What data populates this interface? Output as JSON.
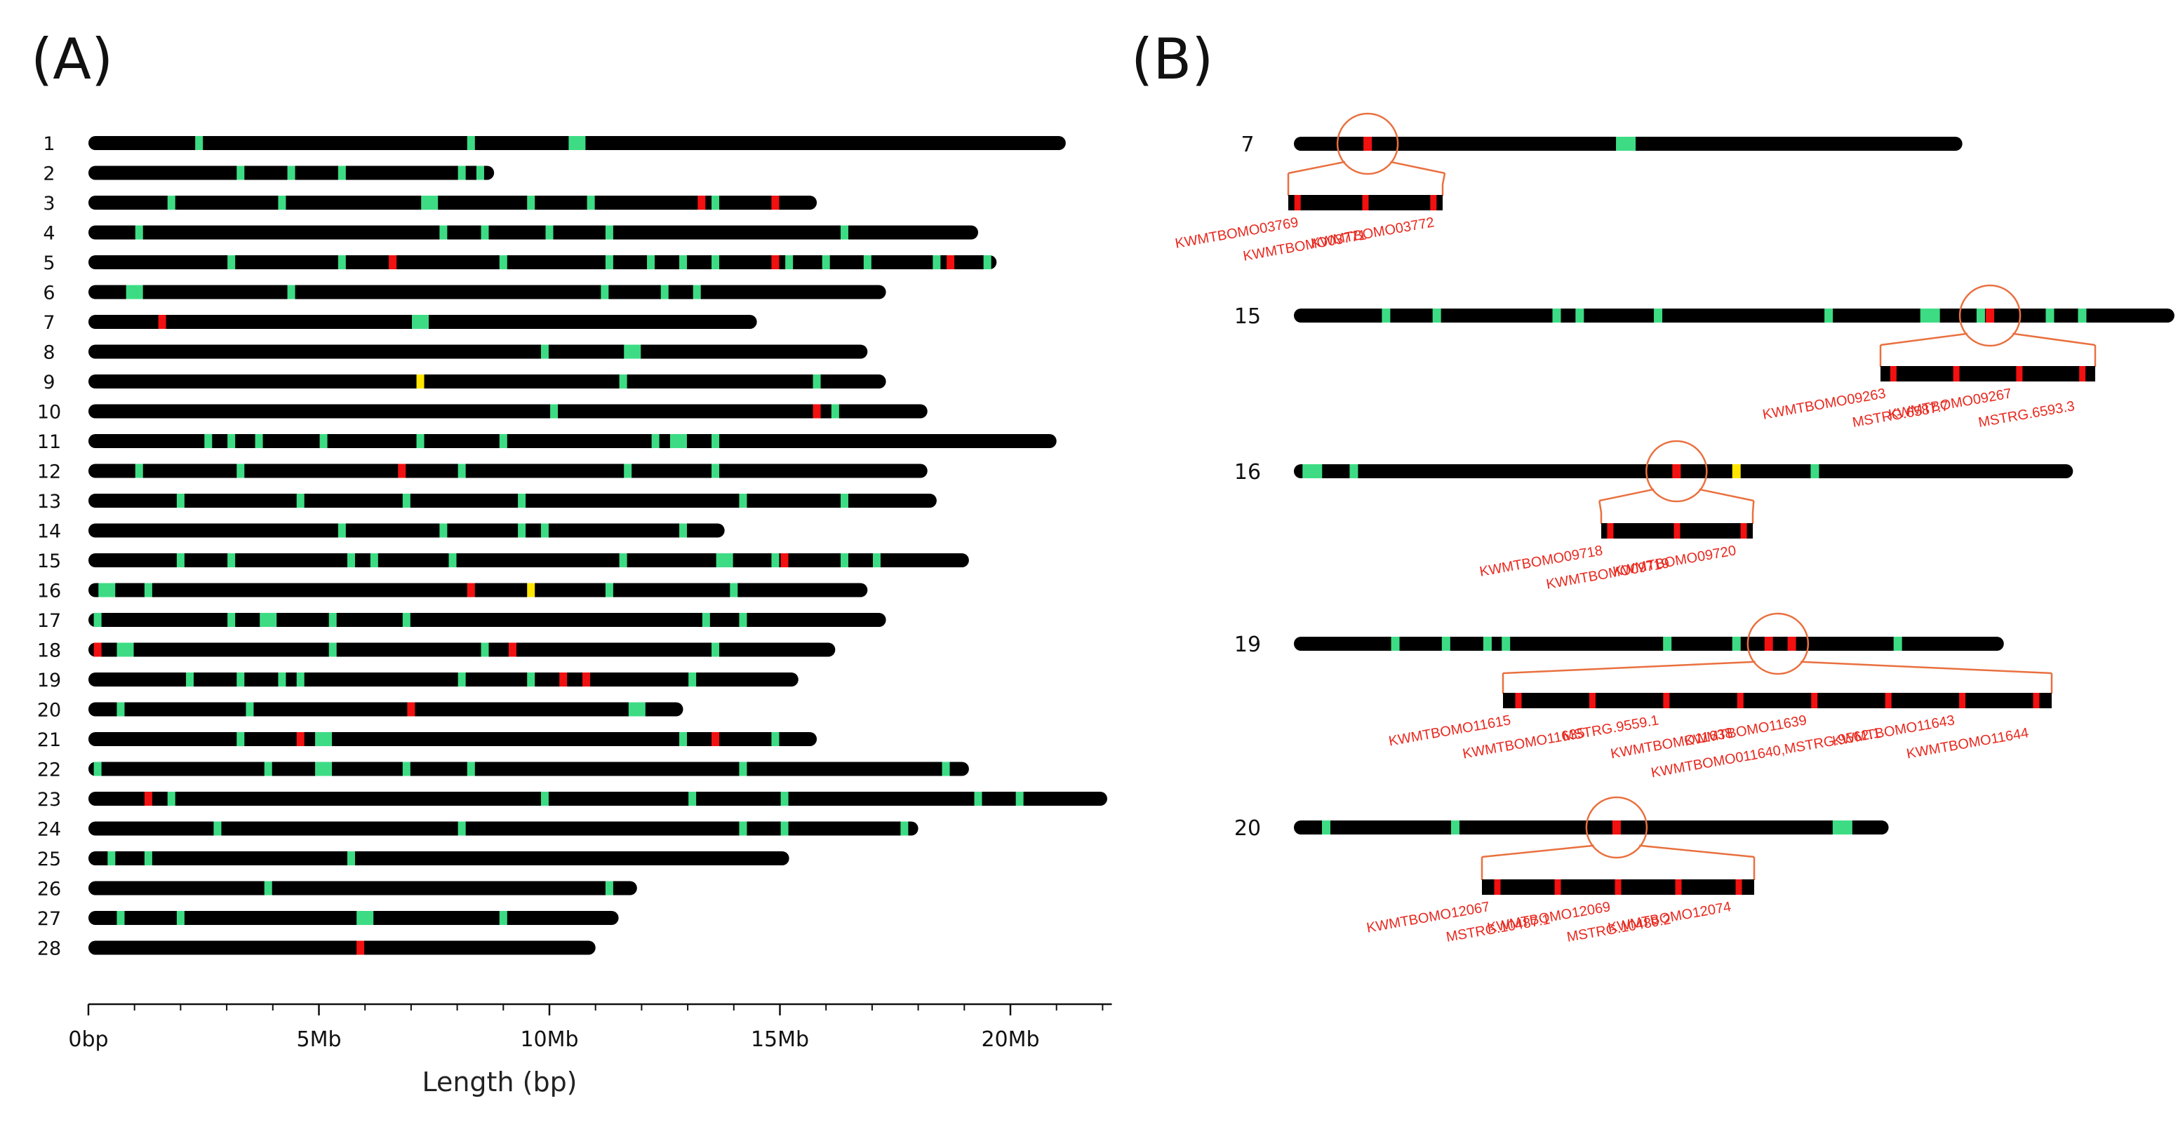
{
  "panel_a": {
    "label": "(A)",
    "axis": {
      "title": "Length (bp)",
      "max_mb": 22.2,
      "ticks": [
        {
          "value": 0,
          "label": "0bp"
        },
        {
          "value": 5,
          "label": "5Mb"
        },
        {
          "value": 10,
          "label": "10Mb"
        },
        {
          "value": 15,
          "label": "15Mb"
        },
        {
          "value": 20,
          "label": "20Mb"
        }
      ]
    },
    "chromosomes": [
      {
        "id": "1",
        "length": 21.2,
        "marks": [
          {
            "pos": 2.4,
            "color": "green"
          },
          {
            "pos": 8.3,
            "color": "green"
          },
          {
            "pos": 10.6,
            "color": "green",
            "wide": true
          }
        ]
      },
      {
        "id": "2",
        "length": 8.8,
        "marks": [
          {
            "pos": 3.3,
            "color": "green"
          },
          {
            "pos": 4.4,
            "color": "green"
          },
          {
            "pos": 5.5,
            "color": "green"
          },
          {
            "pos": 8.1,
            "color": "green"
          },
          {
            "pos": 8.5,
            "color": "green"
          }
        ]
      },
      {
        "id": "3",
        "length": 15.8,
        "marks": [
          {
            "pos": 1.8,
            "color": "green"
          },
          {
            "pos": 4.2,
            "color": "green"
          },
          {
            "pos": 7.4,
            "color": "green",
            "wide": true
          },
          {
            "pos": 9.6,
            "color": "green"
          },
          {
            "pos": 10.9,
            "color": "green"
          },
          {
            "pos": 13.3,
            "color": "red"
          },
          {
            "pos": 13.6,
            "color": "green"
          },
          {
            "pos": 14.9,
            "color": "red"
          }
        ]
      },
      {
        "id": "4",
        "length": 19.3,
        "marks": [
          {
            "pos": 1.1,
            "color": "green"
          },
          {
            "pos": 7.7,
            "color": "green"
          },
          {
            "pos": 8.6,
            "color": "green"
          },
          {
            "pos": 10.0,
            "color": "green"
          },
          {
            "pos": 11.3,
            "color": "green"
          },
          {
            "pos": 16.4,
            "color": "green"
          }
        ]
      },
      {
        "id": "5",
        "length": 19.7,
        "marks": [
          {
            "pos": 3.1,
            "color": "green"
          },
          {
            "pos": 5.5,
            "color": "green"
          },
          {
            "pos": 6.6,
            "color": "red"
          },
          {
            "pos": 9.0,
            "color": "green"
          },
          {
            "pos": 11.3,
            "color": "green"
          },
          {
            "pos": 12.2,
            "color": "green"
          },
          {
            "pos": 12.9,
            "color": "green"
          },
          {
            "pos": 13.6,
            "color": "green"
          },
          {
            "pos": 14.9,
            "color": "red"
          },
          {
            "pos": 15.2,
            "color": "green"
          },
          {
            "pos": 16.0,
            "color": "green"
          },
          {
            "pos": 16.9,
            "color": "green"
          },
          {
            "pos": 18.4,
            "color": "green"
          },
          {
            "pos": 18.7,
            "color": "red"
          },
          {
            "pos": 19.5,
            "color": "green"
          }
        ]
      },
      {
        "id": "6",
        "length": 17.3,
        "marks": [
          {
            "pos": 1.0,
            "color": "green",
            "wide": true
          },
          {
            "pos": 4.4,
            "color": "green"
          },
          {
            "pos": 11.2,
            "color": "green"
          },
          {
            "pos": 12.5,
            "color": "green"
          },
          {
            "pos": 13.2,
            "color": "green"
          }
        ]
      },
      {
        "id": "7",
        "length": 14.5,
        "marks": [
          {
            "pos": 1.6,
            "color": "red"
          },
          {
            "pos": 7.2,
            "color": "green",
            "wide": true
          }
        ]
      },
      {
        "id": "8",
        "length": 16.9,
        "marks": [
          {
            "pos": 9.9,
            "color": "green"
          },
          {
            "pos": 11.8,
            "color": "green",
            "wide": true
          }
        ]
      },
      {
        "id": "9",
        "length": 17.3,
        "marks": [
          {
            "pos": 7.2,
            "color": "yellow"
          },
          {
            "pos": 11.6,
            "color": "green"
          },
          {
            "pos": 15.8,
            "color": "green"
          }
        ]
      },
      {
        "id": "10",
        "length": 18.2,
        "marks": [
          {
            "pos": 10.1,
            "color": "green"
          },
          {
            "pos": 15.8,
            "color": "red"
          },
          {
            "pos": 16.2,
            "color": "green"
          }
        ]
      },
      {
        "id": "11",
        "length": 21.0,
        "marks": [
          {
            "pos": 2.6,
            "color": "green"
          },
          {
            "pos": 3.1,
            "color": "green"
          },
          {
            "pos": 3.7,
            "color": "green"
          },
          {
            "pos": 5.1,
            "color": "green"
          },
          {
            "pos": 7.2,
            "color": "green"
          },
          {
            "pos": 9.0,
            "color": "green"
          },
          {
            "pos": 12.3,
            "color": "green"
          },
          {
            "pos": 12.8,
            "color": "green",
            "wide": true
          },
          {
            "pos": 13.6,
            "color": "green"
          }
        ]
      },
      {
        "id": "12",
        "length": 18.2,
        "marks": [
          {
            "pos": 1.1,
            "color": "green"
          },
          {
            "pos": 3.3,
            "color": "green"
          },
          {
            "pos": 6.8,
            "color": "red"
          },
          {
            "pos": 8.1,
            "color": "green"
          },
          {
            "pos": 11.7,
            "color": "green"
          },
          {
            "pos": 13.6,
            "color": "green"
          }
        ]
      },
      {
        "id": "13",
        "length": 18.4,
        "marks": [
          {
            "pos": 2.0,
            "color": "green"
          },
          {
            "pos": 4.6,
            "color": "green"
          },
          {
            "pos": 6.9,
            "color": "green"
          },
          {
            "pos": 9.4,
            "color": "green"
          },
          {
            "pos": 14.2,
            "color": "green"
          },
          {
            "pos": 16.4,
            "color": "green"
          }
        ]
      },
      {
        "id": "14",
        "length": 13.8,
        "marks": [
          {
            "pos": 5.5,
            "color": "green"
          },
          {
            "pos": 7.7,
            "color": "green"
          },
          {
            "pos": 9.4,
            "color": "green"
          },
          {
            "pos": 9.9,
            "color": "green"
          },
          {
            "pos": 12.9,
            "color": "green"
          }
        ]
      },
      {
        "id": "15",
        "length": 19.1,
        "marks": [
          {
            "pos": 2.0,
            "color": "green"
          },
          {
            "pos": 3.1,
            "color": "green"
          },
          {
            "pos": 5.7,
            "color": "green"
          },
          {
            "pos": 6.2,
            "color": "green"
          },
          {
            "pos": 7.9,
            "color": "green"
          },
          {
            "pos": 11.6,
            "color": "green"
          },
          {
            "pos": 13.8,
            "color": "green",
            "wide": true
          },
          {
            "pos": 14.9,
            "color": "green"
          },
          {
            "pos": 15.1,
            "color": "red"
          },
          {
            "pos": 16.4,
            "color": "green"
          },
          {
            "pos": 17.1,
            "color": "green"
          }
        ]
      },
      {
        "id": "16",
        "length": 16.9,
        "marks": [
          {
            "pos": 0.4,
            "color": "green",
            "wide": true
          },
          {
            "pos": 1.3,
            "color": "green"
          },
          {
            "pos": 8.3,
            "color": "red"
          },
          {
            "pos": 9.6,
            "color": "yellow"
          },
          {
            "pos": 11.3,
            "color": "green"
          },
          {
            "pos": 14.0,
            "color": "green"
          }
        ]
      },
      {
        "id": "17",
        "length": 17.3,
        "marks": [
          {
            "pos": 0.2,
            "color": "green"
          },
          {
            "pos": 3.1,
            "color": "green"
          },
          {
            "pos": 3.9,
            "color": "green",
            "wide": true
          },
          {
            "pos": 5.3,
            "color": "green"
          },
          {
            "pos": 6.9,
            "color": "green"
          },
          {
            "pos": 13.4,
            "color": "green"
          },
          {
            "pos": 14.2,
            "color": "green"
          }
        ]
      },
      {
        "id": "18",
        "length": 16.2,
        "marks": [
          {
            "pos": 0.2,
            "color": "red"
          },
          {
            "pos": 0.8,
            "color": "green",
            "wide": true
          },
          {
            "pos": 5.3,
            "color": "green"
          },
          {
            "pos": 8.6,
            "color": "green"
          },
          {
            "pos": 9.2,
            "color": "red"
          },
          {
            "pos": 13.6,
            "color": "green"
          }
        ]
      },
      {
        "id": "19",
        "length": 15.4,
        "marks": [
          {
            "pos": 2.2,
            "color": "green"
          },
          {
            "pos": 3.3,
            "color": "green"
          },
          {
            "pos": 4.2,
            "color": "green"
          },
          {
            "pos": 4.6,
            "color": "green"
          },
          {
            "pos": 8.1,
            "color": "green"
          },
          {
            "pos": 9.6,
            "color": "green"
          },
          {
            "pos": 10.3,
            "color": "red"
          },
          {
            "pos": 10.8,
            "color": "red"
          },
          {
            "pos": 13.1,
            "color": "green"
          }
        ]
      },
      {
        "id": "20",
        "length": 12.9,
        "marks": [
          {
            "pos": 0.7,
            "color": "green"
          },
          {
            "pos": 3.5,
            "color": "green"
          },
          {
            "pos": 7.0,
            "color": "red"
          },
          {
            "pos": 11.9,
            "color": "green",
            "wide": true
          }
        ]
      },
      {
        "id": "21",
        "length": 15.8,
        "marks": [
          {
            "pos": 3.3,
            "color": "green"
          },
          {
            "pos": 4.6,
            "color": "red"
          },
          {
            "pos": 5.1,
            "color": "green",
            "wide": true
          },
          {
            "pos": 12.9,
            "color": "green"
          },
          {
            "pos": 13.6,
            "color": "red"
          },
          {
            "pos": 14.9,
            "color": "green"
          }
        ]
      },
      {
        "id": "22",
        "length": 19.1,
        "marks": [
          {
            "pos": 0.2,
            "color": "green"
          },
          {
            "pos": 3.9,
            "color": "green"
          },
          {
            "pos": 5.1,
            "color": "green",
            "wide": true
          },
          {
            "pos": 6.9,
            "color": "green"
          },
          {
            "pos": 8.3,
            "color": "green"
          },
          {
            "pos": 14.2,
            "color": "green"
          },
          {
            "pos": 18.6,
            "color": "green"
          }
        ]
      },
      {
        "id": "23",
        "length": 22.1,
        "marks": [
          {
            "pos": 1.3,
            "color": "red"
          },
          {
            "pos": 1.8,
            "color": "green"
          },
          {
            "pos": 9.9,
            "color": "green"
          },
          {
            "pos": 13.1,
            "color": "green"
          },
          {
            "pos": 15.1,
            "color": "green"
          },
          {
            "pos": 19.3,
            "color": "green"
          },
          {
            "pos": 20.2,
            "color": "green"
          }
        ]
      },
      {
        "id": "24",
        "length": 18.0,
        "marks": [
          {
            "pos": 2.8,
            "color": "green"
          },
          {
            "pos": 8.1,
            "color": "green"
          },
          {
            "pos": 14.2,
            "color": "green"
          },
          {
            "pos": 15.1,
            "color": "green"
          },
          {
            "pos": 17.7,
            "color": "green"
          }
        ]
      },
      {
        "id": "25",
        "length": 15.2,
        "marks": [
          {
            "pos": 0.5,
            "color": "green"
          },
          {
            "pos": 1.3,
            "color": "green"
          },
          {
            "pos": 5.7,
            "color": "green"
          }
        ]
      },
      {
        "id": "26",
        "length": 11.9,
        "marks": [
          {
            "pos": 3.9,
            "color": "green"
          },
          {
            "pos": 11.3,
            "color": "green"
          }
        ]
      },
      {
        "id": "27",
        "length": 11.5,
        "marks": [
          {
            "pos": 0.7,
            "color": "green"
          },
          {
            "pos": 2.0,
            "color": "green"
          },
          {
            "pos": 6.0,
            "color": "green",
            "wide": true
          },
          {
            "pos": 9.0,
            "color": "green"
          }
        ]
      },
      {
        "id": "28",
        "length": 11.0,
        "marks": [
          {
            "pos": 5.9,
            "color": "red"
          }
        ]
      }
    ]
  },
  "panel_b": {
    "label": "(B)",
    "zooms": [
      {
        "chr": "7",
        "length": 14.5,
        "marks": [
          {
            "pos": 1.6,
            "color": "red"
          },
          {
            "pos": 7.2,
            "color": "green",
            "wide": true
          }
        ],
        "focus": 1.6,
        "genes": [
          "KWMTBOMO03769",
          "KWMTBOMO03771",
          "KWMTBOMO03772"
        ]
      },
      {
        "chr": "15",
        "length": 19.1,
        "marks": [
          {
            "pos": 2.0,
            "color": "green"
          },
          {
            "pos": 3.1,
            "color": "green"
          },
          {
            "pos": 5.7,
            "color": "green"
          },
          {
            "pos": 6.2,
            "color": "green"
          },
          {
            "pos": 7.9,
            "color": "green"
          },
          {
            "pos": 11.6,
            "color": "green"
          },
          {
            "pos": 13.8,
            "color": "green",
            "wide": true
          },
          {
            "pos": 14.9,
            "color": "green"
          },
          {
            "pos": 15.1,
            "color": "red"
          },
          {
            "pos": 16.4,
            "color": "green"
          },
          {
            "pos": 17.1,
            "color": "green"
          }
        ],
        "focus": 15.1,
        "genes": [
          "KWMTBOMO09263",
          "MSTRG.6587.7",
          "KWMTBOMO09267",
          "MSTRG.6593.3"
        ]
      },
      {
        "chr": "16",
        "length": 16.9,
        "marks": [
          {
            "pos": 0.4,
            "color": "green",
            "wide": true
          },
          {
            "pos": 1.3,
            "color": "green"
          },
          {
            "pos": 8.3,
            "color": "red"
          },
          {
            "pos": 9.6,
            "color": "yellow"
          },
          {
            "pos": 11.3,
            "color": "green"
          }
        ],
        "focus": 8.3,
        "genes": [
          "KWMTBOMO09718",
          "KWMTBOMO09719",
          "KWMTBOMO09720"
        ]
      },
      {
        "chr": "19",
        "length": 15.4,
        "marks": [
          {
            "pos": 2.2,
            "color": "green"
          },
          {
            "pos": 3.3,
            "color": "green"
          },
          {
            "pos": 4.2,
            "color": "green"
          },
          {
            "pos": 4.6,
            "color": "green"
          },
          {
            "pos": 8.1,
            "color": "green"
          },
          {
            "pos": 9.6,
            "color": "green"
          },
          {
            "pos": 10.3,
            "color": "red"
          },
          {
            "pos": 10.8,
            "color": "red"
          },
          {
            "pos": 13.1,
            "color": "green"
          }
        ],
        "focus": 10.5,
        "genes": [
          "KWMTBOMO11615",
          "KWMTBOMO11635",
          "MSTRG.9559.1",
          "KWMTBOMO11638",
          "KWMTBOMO11639",
          "KWMTBOMO011640,MSTRG.9562.1",
          "KWMTBOMO11643",
          "KWMTBOMO11644"
        ]
      },
      {
        "chr": "20",
        "length": 12.9,
        "marks": [
          {
            "pos": 0.7,
            "color": "green"
          },
          {
            "pos": 3.5,
            "color": "green"
          },
          {
            "pos": 7.0,
            "color": "red"
          },
          {
            "pos": 11.9,
            "color": "green",
            "wide": true
          }
        ],
        "focus": 7.0,
        "genes": [
          "KWMTBOMO12067",
          "MSTRG.10487.1",
          "KWMTBOMO12069",
          "MSTRG.10489.2",
          "KWMTBOMO12074"
        ]
      }
    ]
  },
  "colors": {
    "chromosome": "#000000",
    "green": "#3ddc84",
    "red": "#f21010",
    "yellow": "#ffe600",
    "zoom_line": "#e9703f",
    "gene_text": "#e8291f"
  }
}
